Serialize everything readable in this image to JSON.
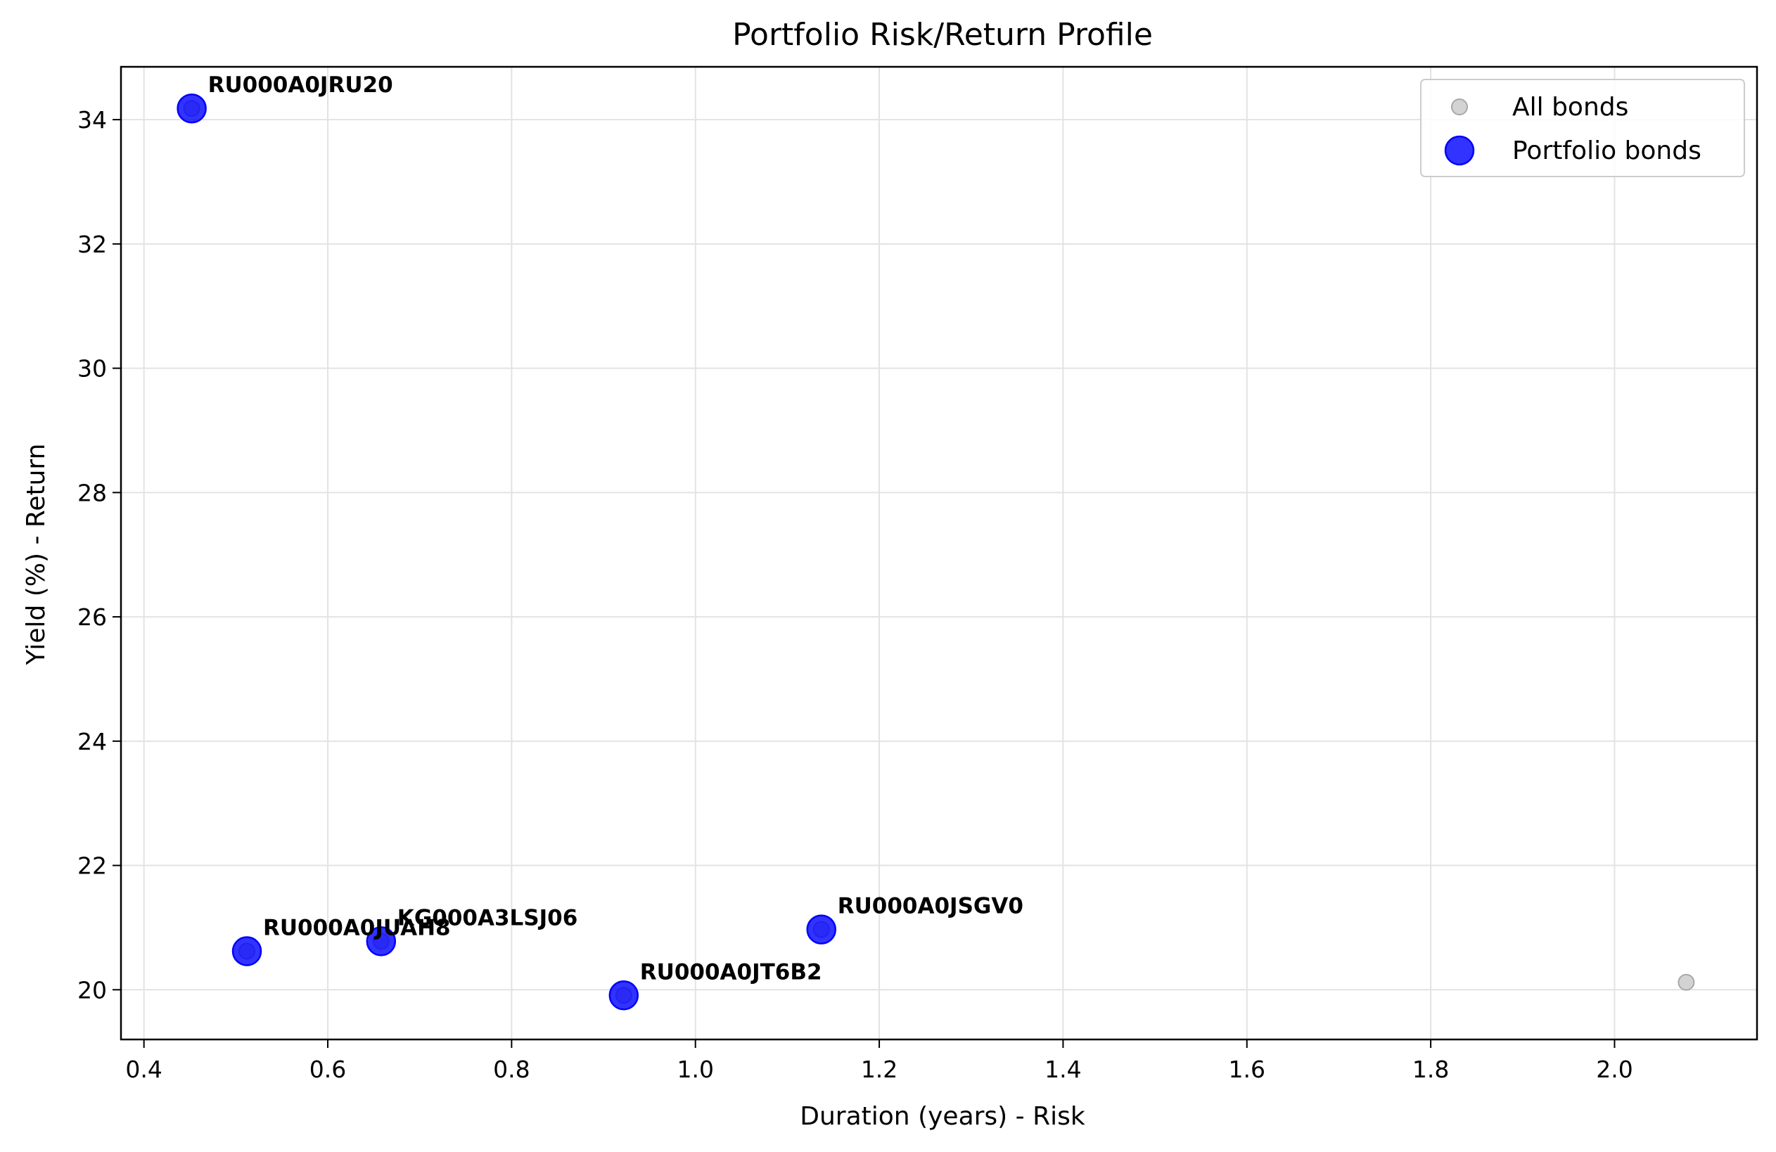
{
  "chart_data": {
    "type": "scatter",
    "title": "Portfolio Risk/Return Profile",
    "xlabel": "Duration (years) - Risk",
    "ylabel": "Yield (%) - Return",
    "xlim": [
      0.375,
      2.155
    ],
    "ylim": [
      19.2,
      34.85
    ],
    "xticks": [
      "0.4",
      "0.6",
      "0.8",
      "1.0",
      "1.2",
      "1.4",
      "1.6",
      "1.8",
      "2.0"
    ],
    "yticks": [
      "20",
      "22",
      "24",
      "26",
      "28",
      "30",
      "32",
      "34"
    ],
    "grid": true,
    "legend_position": "top-right",
    "series": [
      {
        "name": "All bonds",
        "color": "#c0c0c0",
        "points": [
          {
            "x": 0.452,
            "y": 34.18
          },
          {
            "x": 0.512,
            "y": 20.62
          },
          {
            "x": 0.658,
            "y": 20.78
          },
          {
            "x": 0.922,
            "y": 19.91
          },
          {
            "x": 1.137,
            "y": 20.97
          },
          {
            "x": 2.078,
            "y": 20.12
          }
        ]
      },
      {
        "name": "Portfolio bonds",
        "color": "#0000ff",
        "points": [
          {
            "x": 0.452,
            "y": 34.18,
            "label": "RU000A0JRU20"
          },
          {
            "x": 0.512,
            "y": 20.62,
            "label": "RU000A0JUAH8"
          },
          {
            "x": 0.658,
            "y": 20.78,
            "label": "KG000A3LSJ06"
          },
          {
            "x": 0.922,
            "y": 19.91,
            "label": "RU000A0JT6B2"
          },
          {
            "x": 1.137,
            "y": 20.97,
            "label": "RU000A0JSGV0"
          }
        ]
      }
    ]
  }
}
